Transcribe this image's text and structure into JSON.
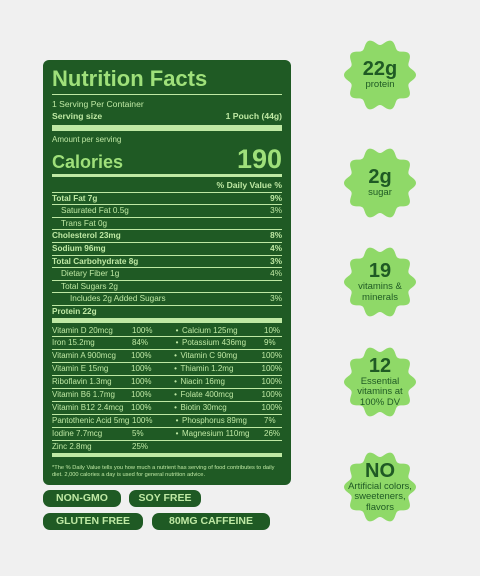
{
  "label": {
    "title": "Nutrition Facts",
    "servings": "1 Serving Per Container",
    "serving_size_label": "Serving size",
    "serving_size_value": "1 Pouch (44g)",
    "amount_per_serving": "Amount per serving",
    "calories_label": "Calories",
    "calories_value": "190",
    "dv_header": "% Daily Value %",
    "nutrients": [
      {
        "name": "Total Fat 7g",
        "dv": "9%"
      },
      {
        "name": "Saturated Fat 0.5g",
        "dv": "3%"
      },
      {
        "name": "Trans Fat 0g",
        "dv": ""
      },
      {
        "name": "Cholesterol 23mg",
        "dv": "8%"
      },
      {
        "name": "Sodium 96mg",
        "dv": "4%"
      },
      {
        "name": "Total Carbohydrate 8g",
        "dv": "3%"
      },
      {
        "name": "Dietary Fiber 1g",
        "dv": "4%"
      },
      {
        "name": "Total Sugars 2g",
        "dv": ""
      },
      {
        "name": "Includes 2g Added Sugars",
        "dv": "3%"
      },
      {
        "name": "Protein 22g",
        "dv": ""
      }
    ],
    "vitamins": [
      {
        "n1": "Vitamin D 20mcg",
        "p1": "100%",
        "n2": "Calcium 125mg",
        "p2": "10%"
      },
      {
        "n1": "Iron 15.2mg",
        "p1": "84%",
        "n2": "Potassium 436mg",
        "p2": "9%"
      },
      {
        "n1": "Vitamin A 900mcg",
        "p1": "100%",
        "n2": "Vitamin C 90mg",
        "p2": "100%"
      },
      {
        "n1": "Vitamin E 15mg",
        "p1": "100%",
        "n2": "Thiamin 1.2mg",
        "p2": "100%"
      },
      {
        "n1": "Riboflavin 1.3mg",
        "p1": "100%",
        "n2": "Niacin 16mg",
        "p2": "100%"
      },
      {
        "n1": "Vitamin B6 1.7mg",
        "p1": "100%",
        "n2": "Folate 400mcg",
        "p2": "100%"
      },
      {
        "n1": "Vitamin B12 2.4mcg",
        "p1": "100%",
        "n2": "Biotin 30mcg",
        "p2": "100%"
      },
      {
        "n1": "Pantothenic Acid 5mg",
        "p1": "100%",
        "n2": "Phosphorus 89mg",
        "p2": "7%"
      },
      {
        "n1": "Iodine 7.7mcg",
        "p1": "5%",
        "n2": "Magnesium 110mg",
        "p2": "26%"
      },
      {
        "n1": "Zinc 2.8mg",
        "p1": "25%",
        "n2": "",
        "p2": ""
      }
    ],
    "footnote": "*The % Daily Value tells you how much a nutrient has serving of food contributes to daily diet. 2,000 calories a day is used for general nutrition advice."
  },
  "tags": [
    "NON-GMO",
    "SOY FREE",
    "GLUTEN FREE",
    "80MG CAFFEINE"
  ],
  "badges": [
    {
      "big": "22g",
      "small": "protein"
    },
    {
      "big": "2g",
      "small": "sugar"
    },
    {
      "big": "19",
      "small": "vitamins & minerals"
    },
    {
      "big": "12",
      "small": "Essential vitamins at 100% DV"
    },
    {
      "big": "NO",
      "small": "Artificial colors, sweeteners, flavors"
    }
  ],
  "colors": {
    "dark_green": "#1f5a24",
    "light_green": "#bfe9a4",
    "badge_green": "#8fd968",
    "background": "#f0f0f0"
  }
}
